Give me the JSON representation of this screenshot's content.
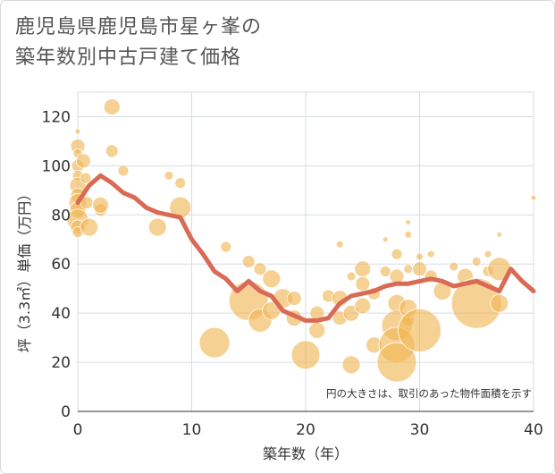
{
  "title_lines": [
    "鹿児島県鹿児島市星ヶ峯の",
    "築年数別中古戸建て価格"
  ],
  "chart_data": {
    "type": "scatter",
    "title": "鹿児島県鹿児島市星ヶ峯の築年数別中古戸建て価格",
    "xlabel": "築年数（年）",
    "ylabel": "坪（3.3㎡）単価（万円）",
    "xlim": [
      0,
      40
    ],
    "ylim": [
      0,
      130
    ],
    "xticks": [
      0,
      10,
      20,
      30,
      40
    ],
    "yticks": [
      0,
      20,
      40,
      60,
      80,
      100,
      120
    ],
    "grid": true,
    "annotation": "円の大きさは、取引のあった物件面積を示す",
    "colors": {
      "bubble": "#f0b552",
      "line": "#d96a55",
      "grid": "#d5dce6",
      "text": "#333333"
    },
    "series": [
      {
        "kind": "bubble",
        "points": [
          {
            "x": 0,
            "y": 114,
            "s": 3
          },
          {
            "x": 0,
            "y": 108,
            "s": 8
          },
          {
            "x": 0,
            "y": 105,
            "s": 5
          },
          {
            "x": 0,
            "y": 100,
            "s": 7
          },
          {
            "x": 0,
            "y": 96,
            "s": 6
          },
          {
            "x": 0,
            "y": 92,
            "s": 9
          },
          {
            "x": 0,
            "y": 88,
            "s": 8
          },
          {
            "x": 0,
            "y": 85,
            "s": 10
          },
          {
            "x": 0,
            "y": 82,
            "s": 9
          },
          {
            "x": 0,
            "y": 78,
            "s": 12
          },
          {
            "x": 0,
            "y": 75,
            "s": 8
          },
          {
            "x": 0,
            "y": 73,
            "s": 6
          },
          {
            "x": 0.5,
            "y": 102,
            "s": 8
          },
          {
            "x": 0.7,
            "y": 95,
            "s": 6
          },
          {
            "x": 0.8,
            "y": 85,
            "s": 7
          },
          {
            "x": 1,
            "y": 75,
            "s": 10
          },
          {
            "x": 2,
            "y": 82,
            "s": 7
          },
          {
            "x": 2,
            "y": 84,
            "s": 9
          },
          {
            "x": 3,
            "y": 124,
            "s": 9
          },
          {
            "x": 3,
            "y": 106,
            "s": 7
          },
          {
            "x": 4,
            "y": 98,
            "s": 6
          },
          {
            "x": 7,
            "y": 75,
            "s": 10
          },
          {
            "x": 8,
            "y": 96,
            "s": 5
          },
          {
            "x": 9,
            "y": 93,
            "s": 6
          },
          {
            "x": 9,
            "y": 83,
            "s": 12
          },
          {
            "x": 12,
            "y": 28,
            "s": 17
          },
          {
            "x": 13,
            "y": 67,
            "s": 6
          },
          {
            "x": 15,
            "y": 61,
            "s": 7
          },
          {
            "x": 15,
            "y": 45,
            "s": 22
          },
          {
            "x": 16,
            "y": 58,
            "s": 7
          },
          {
            "x": 16,
            "y": 37,
            "s": 13
          },
          {
            "x": 17,
            "y": 54,
            "s": 10
          },
          {
            "x": 17,
            "y": 41,
            "s": 10
          },
          {
            "x": 18,
            "y": 46,
            "s": 11
          },
          {
            "x": 19,
            "y": 46,
            "s": 8
          },
          {
            "x": 19,
            "y": 38,
            "s": 9
          },
          {
            "x": 20,
            "y": 23,
            "s": 16
          },
          {
            "x": 21,
            "y": 40,
            "s": 8
          },
          {
            "x": 21,
            "y": 33,
            "s": 9
          },
          {
            "x": 22,
            "y": 47,
            "s": 7
          },
          {
            "x": 23,
            "y": 46,
            "s": 9
          },
          {
            "x": 23,
            "y": 38,
            "s": 8
          },
          {
            "x": 23,
            "y": 68,
            "s": 4
          },
          {
            "x": 24,
            "y": 19,
            "s": 10
          },
          {
            "x": 24,
            "y": 40,
            "s": 9
          },
          {
            "x": 24,
            "y": 55,
            "s": 5
          },
          {
            "x": 25,
            "y": 58,
            "s": 9
          },
          {
            "x": 25,
            "y": 52,
            "s": 8
          },
          {
            "x": 25,
            "y": 43,
            "s": 9
          },
          {
            "x": 26,
            "y": 48,
            "s": 7
          },
          {
            "x": 26,
            "y": 27,
            "s": 9
          },
          {
            "x": 27,
            "y": 70,
            "s": 3
          },
          {
            "x": 27,
            "y": 57,
            "s": 6
          },
          {
            "x": 28,
            "y": 64,
            "s": 6
          },
          {
            "x": 28,
            "y": 55,
            "s": 8
          },
          {
            "x": 28,
            "y": 44,
            "s": 10
          },
          {
            "x": 28,
            "y": 35,
            "s": 17
          },
          {
            "x": 28,
            "y": 27,
            "s": 20
          },
          {
            "x": 28,
            "y": 20,
            "s": 22
          },
          {
            "x": 29,
            "y": 77,
            "s": 3
          },
          {
            "x": 29,
            "y": 72,
            "s": 4
          },
          {
            "x": 29,
            "y": 58,
            "s": 5
          },
          {
            "x": 29,
            "y": 37,
            "s": 7
          },
          {
            "x": 29,
            "y": 42,
            "s": 10
          },
          {
            "x": 30,
            "y": 63,
            "s": 4
          },
          {
            "x": 30,
            "y": 58,
            "s": 8
          },
          {
            "x": 30,
            "y": 33,
            "s": 24
          },
          {
            "x": 31,
            "y": 64,
            "s": 4
          },
          {
            "x": 31,
            "y": 55,
            "s": 7
          },
          {
            "x": 32,
            "y": 49,
            "s": 10
          },
          {
            "x": 33,
            "y": 59,
            "s": 5
          },
          {
            "x": 34,
            "y": 55,
            "s": 9
          },
          {
            "x": 35,
            "y": 61,
            "s": 5
          },
          {
            "x": 35,
            "y": 44,
            "s": 28
          },
          {
            "x": 36,
            "y": 64,
            "s": 4
          },
          {
            "x": 36,
            "y": 57,
            "s": 6
          },
          {
            "x": 37,
            "y": 72,
            "s": 3
          },
          {
            "x": 37,
            "y": 58,
            "s": 13
          },
          {
            "x": 37,
            "y": 44,
            "s": 10
          },
          {
            "x": 40,
            "y": 87,
            "s": 3
          }
        ]
      },
      {
        "kind": "line",
        "x": [
          0,
          1,
          2,
          3,
          4,
          5,
          6,
          7,
          8,
          9,
          10,
          11,
          12,
          13,
          14,
          15,
          16,
          17,
          18,
          19,
          20,
          21,
          22,
          23,
          24,
          25,
          26,
          27,
          28,
          29,
          30,
          31,
          32,
          33,
          34,
          35,
          36,
          37,
          38,
          39,
          40
        ],
        "y": [
          85,
          92,
          96,
          93,
          89,
          87,
          83,
          81,
          80,
          79,
          70,
          64,
          57,
          54,
          49,
          53,
          49,
          47,
          41,
          39,
          37,
          37,
          38,
          44,
          47,
          48,
          49,
          51,
          52,
          52,
          53,
          54,
          53,
          51,
          52,
          53,
          51,
          49,
          58,
          53,
          49
        ]
      }
    ]
  }
}
